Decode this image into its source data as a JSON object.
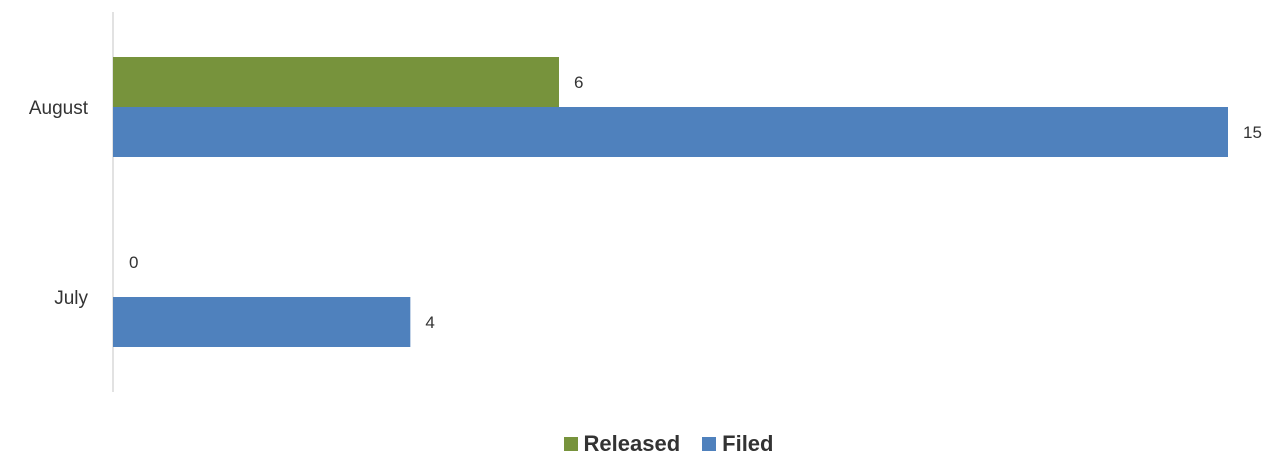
{
  "chart_data": {
    "type": "bar",
    "orientation": "horizontal",
    "categories": [
      "August",
      "July"
    ],
    "series": [
      {
        "name": "Released",
        "values": [
          6,
          0
        ],
        "color": "#77933C"
      },
      {
        "name": "Filed",
        "values": [
          15,
          4
        ],
        "color": "#4F81BD"
      }
    ],
    "xlim": [
      0,
      15
    ],
    "grid": false,
    "legend_position": "bottom"
  }
}
